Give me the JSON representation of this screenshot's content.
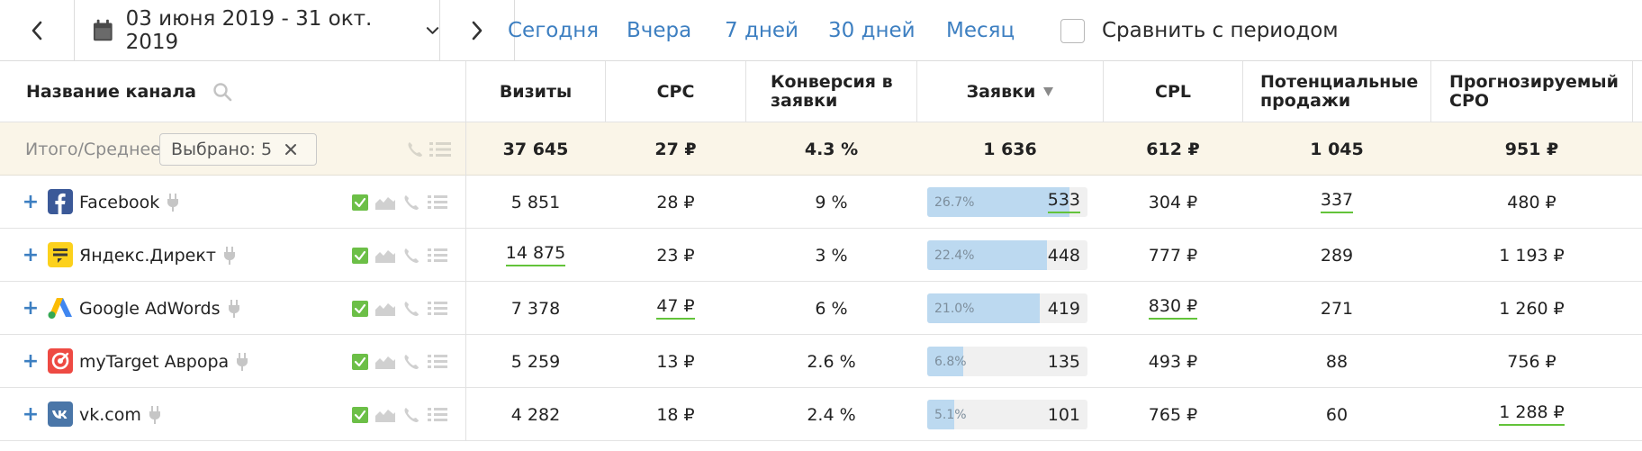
{
  "toolbar": {
    "date_range": "03 июня 2019 - 31 окт. 2019",
    "periods": [
      "Сегодня",
      "Вчера",
      "7 дней",
      "30 дней",
      "Месяц"
    ],
    "compare_label": "Сравнить с периодом"
  },
  "table": {
    "columns": {
      "channel": "Название канала",
      "visits": "Визиты",
      "cpc": "CPC",
      "conversion": "Конверсия в заявки",
      "leads": "Заявки",
      "cpl": "CPL",
      "potential_sales": "Потенциальные продажи",
      "forecast_cpo": "Прогнозируемый CPO"
    },
    "sort_column": "Заявки",
    "summary": {
      "label": "Итого/Среднее",
      "selected_chip": "Выбрано: 5",
      "visits": "37 645",
      "cpc": "27 ₽",
      "conversion": "4.3 %",
      "leads": "1 636",
      "cpl": "612 ₽",
      "potential_sales": "1 045",
      "forecast_cpo": "951 ₽"
    },
    "rows": [
      {
        "name": "Facebook",
        "visits": "5 851",
        "cpc": "28 ₽",
        "conversion": "9 %",
        "lead_share_label": "26.7%",
        "lead_share": 0.267,
        "leads": "533",
        "cpl": "304 ₽",
        "potential_sales": "337",
        "forecast_cpo": "480 ₽",
        "icon": "facebook-logo-icon"
      },
      {
        "name": "Яндекс.Директ",
        "visits": "14 875",
        "cpc": "23 ₽",
        "conversion": "3 %",
        "lead_share_label": "22.4%",
        "lead_share": 0.224,
        "leads": "448",
        "cpl": "777 ₽",
        "potential_sales": "289",
        "forecast_cpo": "1 193 ₽",
        "icon": "yandex-direct-logo-icon"
      },
      {
        "name": "Google AdWords",
        "visits": "7 378",
        "cpc": "47 ₽",
        "conversion": "6 %",
        "lead_share_label": "21.0%",
        "lead_share": 0.21,
        "leads": "419",
        "cpl": "830 ₽",
        "potential_sales": "271",
        "forecast_cpo": "1 260 ₽",
        "icon": "google-adwords-logo-icon"
      },
      {
        "name": "myTarget Аврора",
        "visits": "5 259",
        "cpc": "13 ₽",
        "conversion": "2.6 %",
        "lead_share_label": "6.8%",
        "lead_share": 0.068,
        "leads": "135",
        "cpl": "493 ₽",
        "potential_sales": "88",
        "forecast_cpo": "756 ₽",
        "icon": "mytarget-logo-icon"
      },
      {
        "name": "vk.com",
        "visits": "4 282",
        "cpc": "18 ₽",
        "conversion": "2.4 %",
        "lead_share_label": "5.1%",
        "lead_share": 0.051,
        "leads": "101",
        "cpl": "765 ₽",
        "potential_sales": "60",
        "forecast_cpo": "1 288 ₽",
        "icon": "vk-logo-icon"
      }
    ]
  },
  "colors": {
    "link": "#3d7fc1",
    "summary_bg": "#faf5e8",
    "bar_fill": "#bcd9f0",
    "underline_accent": "#63c33a",
    "checkbox": "#6cbf47"
  }
}
